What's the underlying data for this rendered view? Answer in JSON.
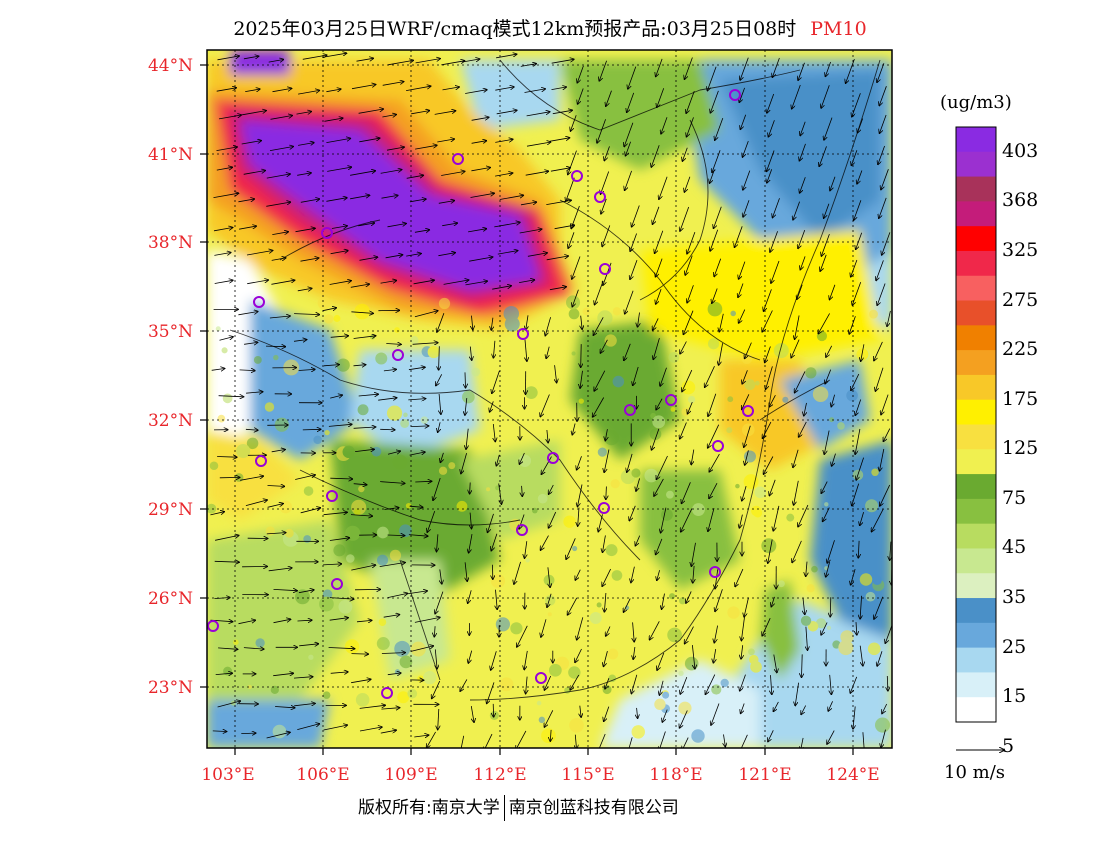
{
  "title": {
    "text": "2025年03月25日WRF/cmaq模式12km预报产品:03月25日08时",
    "variable": "PM10"
  },
  "colorbar": {
    "unit": "(ug/m3)",
    "colors": [
      "#8a2be2",
      "#9b30d0",
      "#a8325a",
      "#c41c7a",
      "#ff0000",
      "#f0284a",
      "#f86060",
      "#e8502a",
      "#f08000",
      "#f4a020",
      "#f8c828",
      "#fff000",
      "#f8e040",
      "#f0f050",
      "#6aaa30",
      "#88c040",
      "#b8dc60",
      "#c8e890",
      "#dcf0c0",
      "#4a90c8",
      "#68a8dc",
      "#a8d8f0",
      "#d8f0f8",
      "#ffffff"
    ],
    "labels": [
      "403",
      "368",
      "325",
      "275",
      "225",
      "175",
      "125",
      "75",
      "45",
      "35",
      "25",
      "15",
      "5"
    ]
  },
  "axes": {
    "lat_labels": [
      "44°N",
      "41°N",
      "38°N",
      "35°N",
      "32°N",
      "29°N",
      "26°N",
      "23°N"
    ],
    "lon_labels": [
      "103°E",
      "106°E",
      "109°E",
      "112°E",
      "115°E",
      "118°E",
      "121°E",
      "124°E"
    ]
  },
  "wind_reference": {
    "label": "10 m/s"
  },
  "footer": {
    "left": "版权所有:南京大学",
    "right": "南京创蓝科技有限公司"
  }
}
